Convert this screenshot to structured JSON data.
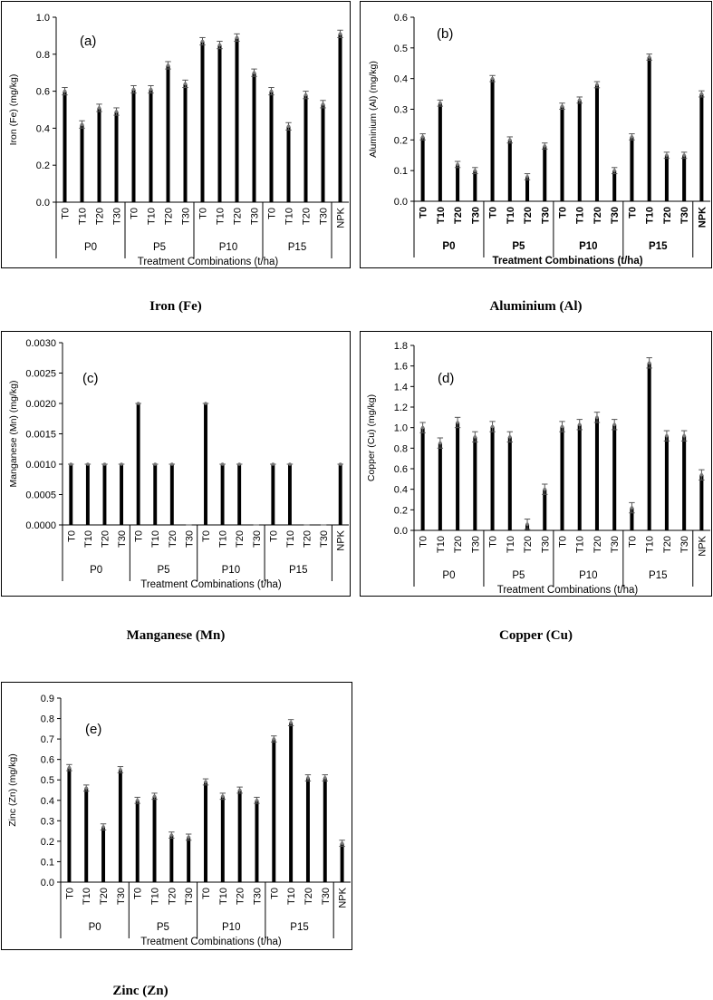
{
  "chart_data": [
    {
      "id": "a",
      "type": "bar",
      "panel_label": "(a)",
      "caption": "Iron (Fe)",
      "ylabel": "Iron (Fe) (mg/kg)",
      "xlabel": "Treatment Combinations (t/ha)",
      "ylim": [
        0,
        1.0
      ],
      "yticks": [
        0,
        0.2,
        0.4,
        0.6,
        0.8,
        1.0
      ],
      "ytick_decimals": 1,
      "tick_bold": false,
      "groups": [
        {
          "name": "P0",
          "categories": [
            "T0",
            "T10",
            "T20",
            "T30"
          ],
          "values": [
            0.6,
            0.42,
            0.51,
            0.49
          ],
          "errors": [
            0.02,
            0.02,
            0.02,
            0.02
          ]
        },
        {
          "name": "P5",
          "categories": [
            "T0",
            "T10",
            "T20",
            "T30"
          ],
          "values": [
            0.61,
            0.61,
            0.74,
            0.64
          ],
          "errors": [
            0.02,
            0.02,
            0.02,
            0.02
          ]
        },
        {
          "name": "P10",
          "categories": [
            "T0",
            "T10",
            "T20",
            "T30"
          ],
          "values": [
            0.87,
            0.85,
            0.89,
            0.7
          ],
          "errors": [
            0.02,
            0.02,
            0.02,
            0.02
          ]
        },
        {
          "name": "P15",
          "categories": [
            "T0",
            "T10",
            "T20",
            "T30"
          ],
          "values": [
            0.6,
            0.41,
            0.58,
            0.53
          ],
          "errors": [
            0.02,
            0.02,
            0.02,
            0.02
          ]
        }
      ],
      "extra": {
        "category": "NPK",
        "values": [
          0.91
        ],
        "errors": [
          0.02
        ]
      }
    },
    {
      "id": "b",
      "type": "bar",
      "panel_label": "(b)",
      "caption": "Aluminium (Al)",
      "ylabel": "Aluminium (Al) (mg/kg)",
      "xlabel": "Treatment Combinations (t/ha)",
      "ylim": [
        0,
        0.6
      ],
      "yticks": [
        0,
        0.1,
        0.2,
        0.3,
        0.4,
        0.5,
        0.6
      ],
      "ytick_decimals": 1,
      "tick_bold": true,
      "groups": [
        {
          "name": "P0",
          "categories": [
            "T0",
            "T10",
            "T20",
            "T30"
          ],
          "values": [
            0.21,
            0.32,
            0.12,
            0.1
          ],
          "errors": [
            0.01,
            0.01,
            0.01,
            0.01
          ]
        },
        {
          "name": "P5",
          "categories": [
            "T0",
            "T10",
            "T20",
            "T30"
          ],
          "values": [
            0.4,
            0.2,
            0.08,
            0.18
          ],
          "errors": [
            0.01,
            0.01,
            0.01,
            0.01
          ]
        },
        {
          "name": "P10",
          "categories": [
            "T0",
            "T10",
            "T20",
            "T30"
          ],
          "values": [
            0.31,
            0.33,
            0.38,
            0.1
          ],
          "errors": [
            0.01,
            0.01,
            0.01,
            0.01
          ]
        },
        {
          "name": "P15",
          "categories": [
            "T0",
            "T10",
            "T20",
            "T30"
          ],
          "values": [
            0.21,
            0.47,
            0.15,
            0.15
          ],
          "errors": [
            0.01,
            0.01,
            0.01,
            0.01
          ]
        }
      ],
      "extra": {
        "category": "NPK",
        "values": [
          0.35
        ],
        "errors": [
          0.01
        ]
      }
    },
    {
      "id": "c",
      "type": "bar",
      "panel_label": "(c)",
      "caption": "Manganese (Mn)",
      "ylabel": "Manganese (Mn) (mg/kg)",
      "xlabel": "Treatment Combinations (t/ha)",
      "ylim": [
        0,
        0.003
      ],
      "yticks": [
        0,
        0.0005,
        0.001,
        0.0015,
        0.002,
        0.0025,
        0.003
      ],
      "ytick_decimals": 4,
      "tick_bold": false,
      "groups": [
        {
          "name": "P0",
          "categories": [
            "T0",
            "T10",
            "T20",
            "T30"
          ],
          "values": [
            0.001,
            0.001,
            0.001,
            0.001
          ],
          "errors": [
            0,
            0,
            0,
            0
          ]
        },
        {
          "name": "P5",
          "categories": [
            "T0",
            "T10",
            "T20",
            "T30"
          ],
          "values": [
            0.002,
            0.001,
            0.001,
            0
          ],
          "errors": [
            0,
            0,
            0,
            0
          ]
        },
        {
          "name": "P10",
          "categories": [
            "T0",
            "T10",
            "T20",
            "T30"
          ],
          "values": [
            0.002,
            0.001,
            0.001,
            0
          ],
          "errors": [
            0,
            0,
            0,
            0
          ]
        },
        {
          "name": "P15",
          "categories": [
            "T0",
            "T10",
            "T20",
            "T30"
          ],
          "values": [
            0.001,
            0.001,
            0,
            0
          ],
          "errors": [
            0,
            0,
            0,
            0
          ]
        }
      ],
      "extra": {
        "category": "NPK",
        "values": [
          0.001
        ],
        "errors": [
          0
        ]
      }
    },
    {
      "id": "d",
      "type": "bar",
      "panel_label": "(d)",
      "caption": "Copper (Cu)",
      "ylabel": "Copper (Cu) (mg/kg)",
      "xlabel": "Treatment Combinations (t/ha)",
      "ylim": [
        0,
        1.8
      ],
      "yticks": [
        0,
        0.2,
        0.4,
        0.6,
        0.8,
        1.0,
        1.2,
        1.4,
        1.6,
        1.8
      ],
      "ytick_decimals": 1,
      "tick_bold": false,
      "groups": [
        {
          "name": "P0",
          "categories": [
            "T0",
            "T10",
            "T20",
            "T30"
          ],
          "values": [
            1.0,
            0.85,
            1.05,
            0.91
          ],
          "errors": [
            0.05,
            0.05,
            0.05,
            0.05
          ]
        },
        {
          "name": "P5",
          "categories": [
            "T0",
            "T10",
            "T20",
            "T30"
          ],
          "values": [
            1.01,
            0.91,
            0.06,
            0.4
          ],
          "errors": [
            0.05,
            0.05,
            0.05,
            0.05
          ]
        },
        {
          "name": "P10",
          "categories": [
            "T0",
            "T10",
            "T20",
            "T30"
          ],
          "values": [
            1.01,
            1.03,
            1.1,
            1.03
          ],
          "errors": [
            0.05,
            0.05,
            0.05,
            0.05
          ]
        },
        {
          "name": "P15",
          "categories": [
            "T0",
            "T10",
            "T20",
            "T30"
          ],
          "values": [
            0.22,
            1.63,
            0.92,
            0.92
          ],
          "errors": [
            0.05,
            0.05,
            0.05,
            0.05
          ]
        }
      ],
      "extra": {
        "category": "NPK",
        "values": [
          0.54
        ],
        "errors": [
          0.05
        ]
      }
    },
    {
      "id": "e",
      "type": "bar",
      "panel_label": "(e)",
      "caption": "Zinc (Zn)",
      "ylabel": "Zinc (Zn) (mg/kg)",
      "xlabel": "Treatment Combinations (t/ha)",
      "ylim": [
        0,
        0.9
      ],
      "yticks": [
        0,
        0.1,
        0.2,
        0.3,
        0.4,
        0.5,
        0.6,
        0.7,
        0.8,
        0.9
      ],
      "ytick_decimals": 1,
      "tick_bold": false,
      "groups": [
        {
          "name": "P0",
          "categories": [
            "T0",
            "T10",
            "T20",
            "T30"
          ],
          "values": [
            0.56,
            0.46,
            0.27,
            0.55
          ],
          "errors": [
            0.015,
            0.015,
            0.015,
            0.015
          ]
        },
        {
          "name": "P5",
          "categories": [
            "T0",
            "T10",
            "T20",
            "T30"
          ],
          "values": [
            0.4,
            0.42,
            0.23,
            0.22
          ],
          "errors": [
            0.015,
            0.015,
            0.015,
            0.015
          ]
        },
        {
          "name": "P10",
          "categories": [
            "T0",
            "T10",
            "T20",
            "T30"
          ],
          "values": [
            0.49,
            0.42,
            0.45,
            0.4
          ],
          "errors": [
            0.015,
            0.015,
            0.015,
            0.015
          ]
        },
        {
          "name": "P15",
          "categories": [
            "T0",
            "T10",
            "T20",
            "T30"
          ],
          "values": [
            0.7,
            0.78,
            0.51,
            0.51
          ],
          "errors": [
            0.015,
            0.015,
            0.015,
            0.015
          ]
        }
      ],
      "extra": {
        "category": "NPK",
        "values": [
          0.19
        ],
        "errors": [
          0.015
        ]
      }
    }
  ]
}
